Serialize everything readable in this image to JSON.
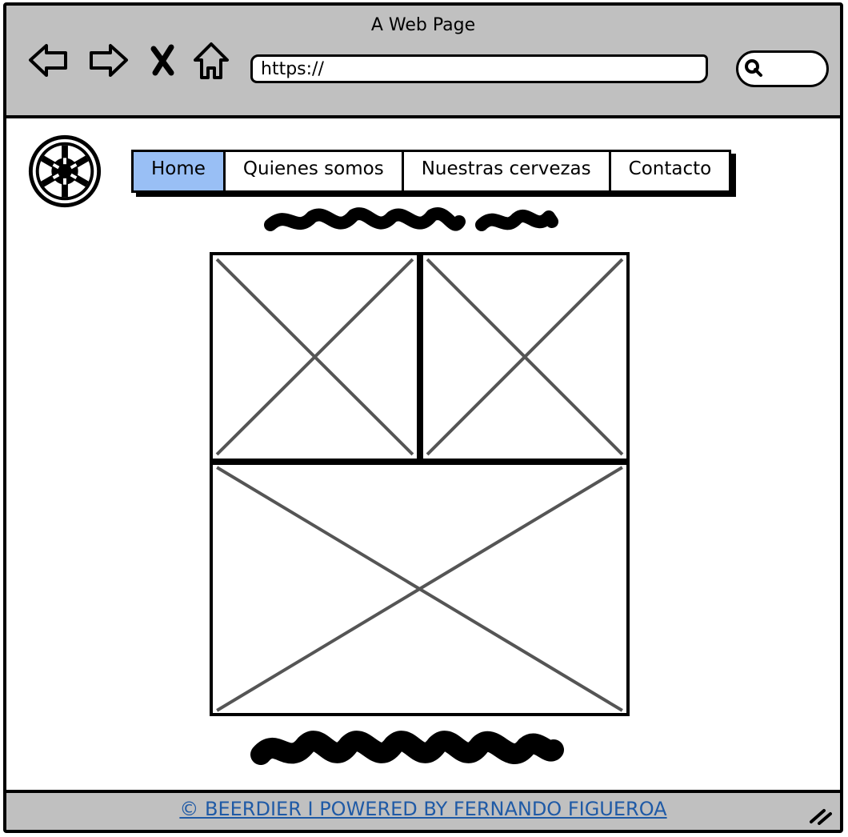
{
  "window": {
    "title": "A Web Page"
  },
  "toolbar": {
    "url_value": "https://",
    "icons": [
      "back-arrow-icon",
      "forward-arrow-icon",
      "close-icon",
      "home-icon",
      "search-icon"
    ]
  },
  "header": {
    "logo_icon": "imperial-emblem-icon",
    "nav": [
      {
        "label": "Home",
        "active": true
      },
      {
        "label": "Quienes somos",
        "active": false
      },
      {
        "label": "Nuestras cervezas",
        "active": false
      },
      {
        "label": "Contacto",
        "active": false
      }
    ],
    "active_color": "#99bff5"
  },
  "main": {
    "images": [
      "image-placeholder",
      "image-placeholder",
      "image-placeholder"
    ]
  },
  "footer": {
    "credit": "© BEERDIER I POWERED BY FERNANDO FIGUEROA",
    "link_color": "#1f5aa6"
  },
  "colors": {
    "chrome": "#c0c0c0",
    "placeholder_cross": "#555555"
  }
}
